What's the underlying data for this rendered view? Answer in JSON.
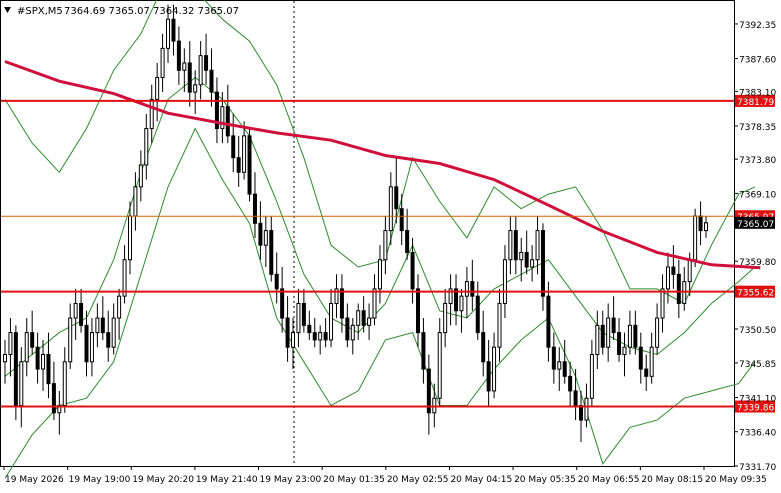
{
  "header": {
    "symbol": "#SPX,M5",
    "ohlc": "7364.69 7365.07 7364.32 7365.07"
  },
  "colors": {
    "bull_candle": "#000000",
    "bear_candle": "#000000",
    "bollinger": "#2e8b2e",
    "moving_average": "#d0103a",
    "level_line": "#e01010",
    "bid_line": "#cc6600",
    "level_tag": "#e01010",
    "price_tag": "#000000"
  },
  "chart_data": {
    "type": "candlestick",
    "ylim": [
      7331.7,
      7395.5
    ],
    "y_ticks": [
      {
        "value": 7392.35,
        "label": "7392.35"
      },
      {
        "value": 7387.6,
        "label": "7387.60"
      },
      {
        "value": 7383.1,
        "label": "7383.10"
      },
      {
        "value": 7378.35,
        "label": "7378.35"
      },
      {
        "value": 7373.8,
        "label": "7373.80"
      },
      {
        "value": 7369.1,
        "label": "7369.10"
      },
      {
        "value": 7359.8,
        "label": "7359.80"
      },
      {
        "value": 7350.5,
        "label": "7350.50"
      },
      {
        "value": 7345.85,
        "label": "7345.85"
      },
      {
        "value": 7341.1,
        "label": "7341.10"
      },
      {
        "value": 7336.4,
        "label": "7336.40"
      },
      {
        "value": 7331.7,
        "label": "7331.70"
      }
    ],
    "x_ticks": [
      "19 May 2026",
      "19 May 19:00",
      "19 May 20:20",
      "19 May 21:40",
      "19 May 23:00",
      "20 May 01:35",
      "20 May 02:55",
      "20 May 04:15",
      "20 May 05:35",
      "20 May 06:55",
      "20 May 08:15",
      "20 May 09:35"
    ],
    "horizontal_levels": [
      {
        "value": 7381.79,
        "label": "7381.79"
      },
      {
        "value": 7355.62,
        "label": "7355.62"
      },
      {
        "value": 7339.86,
        "label": "7339.86"
      }
    ],
    "bid_line": {
      "value": 7365.97,
      "label": "7365.97"
    },
    "last_price": {
      "value": 7365.07,
      "label": "7365.07"
    },
    "candles": [
      [
        7346,
        7349,
        7343,
        7347
      ],
      [
        7347,
        7352,
        7344,
        7350
      ],
      [
        7350,
        7351,
        7338,
        7340
      ],
      [
        7340,
        7348,
        7337,
        7346
      ],
      [
        7346,
        7352,
        7344,
        7350
      ],
      [
        7350,
        7353,
        7347,
        7348
      ],
      [
        7348,
        7350,
        7343,
        7345
      ],
      [
        7345,
        7349,
        7342,
        7347
      ],
      [
        7347,
        7350,
        7341,
        7343
      ],
      [
        7343,
        7346,
        7338,
        7339
      ],
      [
        7339,
        7342,
        7336,
        7340
      ],
      [
        7340,
        7348,
        7339,
        7346
      ],
      [
        7346,
        7354,
        7345,
        7352
      ],
      [
        7352,
        7356,
        7349,
        7354
      ],
      [
        7354,
        7356,
        7350,
        7351
      ],
      [
        7351,
        7353,
        7344,
        7346
      ],
      [
        7346,
        7352,
        7344,
        7350
      ],
      [
        7350,
        7354,
        7348,
        7352
      ],
      [
        7352,
        7355,
        7349,
        7350
      ],
      [
        7350,
        7353,
        7346,
        7348
      ],
      [
        7348,
        7354,
        7347,
        7352
      ],
      [
        7352,
        7356,
        7349,
        7355
      ],
      [
        7355,
        7362,
        7354,
        7360
      ],
      [
        7360,
        7368,
        7358,
        7366
      ],
      [
        7366,
        7372,
        7364,
        7370
      ],
      [
        7370,
        7375,
        7368,
        7373
      ],
      [
        7373,
        7380,
        7371,
        7378
      ],
      [
        7378,
        7384,
        7376,
        7382
      ],
      [
        7382,
        7387,
        7379,
        7385
      ],
      [
        7385,
        7391,
        7383,
        7389
      ],
      [
        7389,
        7395,
        7387,
        7393
      ],
      [
        7393,
        7395,
        7388,
        7390
      ],
      [
        7390,
        7392,
        7384,
        7386
      ],
      [
        7386,
        7389,
        7383,
        7387
      ],
      [
        7387,
        7390,
        7381,
        7383
      ],
      [
        7383,
        7386,
        7380,
        7384
      ],
      [
        7384,
        7390,
        7382,
        7388
      ],
      [
        7388,
        7391,
        7384,
        7386
      ],
      [
        7386,
        7389,
        7381,
        7383
      ],
      [
        7383,
        7385,
        7376,
        7378
      ],
      [
        7378,
        7383,
        7376,
        7381
      ],
      [
        7381,
        7384,
        7376,
        7377
      ],
      [
        7377,
        7380,
        7372,
        7374
      ],
      [
        7374,
        7377,
        7370,
        7372
      ],
      [
        7372,
        7379,
        7371,
        7377
      ],
      [
        7377,
        7378,
        7368,
        7369
      ],
      [
        7369,
        7372,
        7363,
        7365
      ],
      [
        7365,
        7368,
        7360,
        7362
      ],
      [
        7362,
        7366,
        7359,
        7364
      ],
      [
        7364,
        7366,
        7357,
        7358
      ],
      [
        7358,
        7361,
        7354,
        7356
      ],
      [
        7356,
        7359,
        7350,
        7352
      ],
      [
        7352,
        7355,
        7346,
        7348
      ],
      [
        7348,
        7352,
        7345,
        7350
      ],
      [
        7350,
        7356,
        7348,
        7354
      ],
      [
        7354,
        7356,
        7350,
        7351
      ],
      [
        7351,
        7353,
        7349,
        7350
      ],
      [
        7350,
        7352,
        7348,
        7349
      ],
      [
        7349,
        7351,
        7347,
        7350
      ],
      [
        7350,
        7352,
        7348,
        7349
      ],
      [
        7349,
        7356,
        7348,
        7354
      ],
      [
        7354,
        7358,
        7352,
        7356
      ],
      [
        7356,
        7358,
        7350,
        7352
      ],
      [
        7352,
        7354,
        7348,
        7349
      ],
      [
        7349,
        7352,
        7347,
        7351
      ],
      [
        7351,
        7354,
        7349,
        7353
      ],
      [
        7353,
        7355,
        7350,
        7351
      ],
      [
        7351,
        7354,
        7349,
        7352
      ],
      [
        7352,
        7358,
        7351,
        7356
      ],
      [
        7356,
        7362,
        7354,
        7360
      ],
      [
        7360,
        7366,
        7358,
        7364
      ],
      [
        7364,
        7372,
        7362,
        7370
      ],
      [
        7370,
        7374,
        7365,
        7367
      ],
      [
        7367,
        7369,
        7362,
        7364
      ],
      [
        7364,
        7367,
        7360,
        7361
      ],
      [
        7361,
        7363,
        7354,
        7356
      ],
      [
        7356,
        7358,
        7348,
        7350
      ],
      [
        7350,
        7352,
        7343,
        7345
      ],
      [
        7345,
        7347,
        7336,
        7339
      ],
      [
        7339,
        7343,
        7337,
        7341
      ],
      [
        7341,
        7352,
        7340,
        7350
      ],
      [
        7350,
        7356,
        7348,
        7354
      ],
      [
        7354,
        7358,
        7351,
        7356
      ],
      [
        7356,
        7358,
        7351,
        7353
      ],
      [
        7353,
        7356,
        7350,
        7355
      ],
      [
        7355,
        7359,
        7352,
        7357
      ],
      [
        7357,
        7360,
        7353,
        7355
      ],
      [
        7355,
        7357,
        7349,
        7350
      ],
      [
        7350,
        7353,
        7344,
        7346
      ],
      [
        7346,
        7349,
        7340,
        7342
      ],
      [
        7342,
        7350,
        7341,
        7348
      ],
      [
        7348,
        7356,
        7346,
        7354
      ],
      [
        7354,
        7362,
        7352,
        7360
      ],
      [
        7360,
        7366,
        7358,
        7364
      ],
      [
        7364,
        7366,
        7358,
        7360
      ],
      [
        7360,
        7363,
        7357,
        7361
      ],
      [
        7361,
        7364,
        7358,
        7359
      ],
      [
        7359,
        7362,
        7357,
        7360
      ],
      [
        7360,
        7366,
        7358,
        7364
      ],
      [
        7364,
        7365,
        7353,
        7355
      ],
      [
        7355,
        7357,
        7346,
        7348
      ],
      [
        7348,
        7350,
        7343,
        7345
      ],
      [
        7345,
        7348,
        7342,
        7346
      ],
      [
        7346,
        7349,
        7343,
        7344
      ],
      [
        7344,
        7346,
        7340,
        7342
      ],
      [
        7342,
        7345,
        7338,
        7340
      ],
      [
        7340,
        7342,
        7335,
        7338
      ],
      [
        7338,
        7343,
        7337,
        7341
      ],
      [
        7341,
        7349,
        7340,
        7347
      ],
      [
        7347,
        7353,
        7345,
        7351
      ],
      [
        7351,
        7353,
        7347,
        7348
      ],
      [
        7348,
        7354,
        7346,
        7352
      ],
      [
        7352,
        7355,
        7349,
        7350
      ],
      [
        7350,
        7352,
        7346,
        7347
      ],
      [
        7347,
        7350,
        7344,
        7348
      ],
      [
        7348,
        7353,
        7347,
        7351
      ],
      [
        7351,
        7353,
        7347,
        7348
      ],
      [
        7348,
        7350,
        7343,
        7345
      ],
      [
        7345,
        7347,
        7342,
        7344
      ],
      [
        7344,
        7350,
        7343,
        7348
      ],
      [
        7348,
        7354,
        7347,
        7352
      ],
      [
        7352,
        7358,
        7350,
        7356
      ],
      [
        7356,
        7361,
        7354,
        7359
      ],
      [
        7359,
        7362,
        7356,
        7358
      ],
      [
        7358,
        7360,
        7352,
        7354
      ],
      [
        7354,
        7359,
        7353,
        7357
      ],
      [
        7357,
        7361,
        7355,
        7360
      ],
      [
        7360,
        7367,
        7359,
        7366
      ],
      [
        7366,
        7368,
        7362,
        7364
      ],
      [
        7364,
        7366,
        7363,
        7365.07
      ]
    ],
    "moving_average": [
      [
        0,
        7387.2
      ],
      [
        10,
        7384.5
      ],
      [
        20,
        7382.8
      ],
      [
        30,
        7380.1
      ],
      [
        40,
        7378.7
      ],
      [
        50,
        7377.4
      ],
      [
        60,
        7376.4
      ],
      [
        70,
        7374.3
      ],
      [
        80,
        7373.2
      ],
      [
        90,
        7371.0
      ],
      [
        100,
        7367.5
      ],
      [
        110,
        7363.9
      ],
      [
        120,
        7361.0
      ],
      [
        130,
        7359.3
      ],
      [
        139,
        7358.9
      ]
    ],
    "bollinger_upper": [
      [
        0,
        7382
      ],
      [
        5,
        7376
      ],
      [
        10,
        7372
      ],
      [
        15,
        7378
      ],
      [
        20,
        7386
      ],
      [
        25,
        7391
      ],
      [
        30,
        7399
      ],
      [
        35,
        7397
      ],
      [
        40,
        7393
      ],
      [
        45,
        7390
      ],
      [
        50,
        7384
      ],
      [
        55,
        7374
      ],
      [
        60,
        7362
      ],
      [
        65,
        7359
      ],
      [
        70,
        7360
      ],
      [
        75,
        7374
      ],
      [
        80,
        7368
      ],
      [
        85,
        7363
      ],
      [
        90,
        7370
      ],
      [
        95,
        7367
      ],
      [
        100,
        7369
      ],
      [
        105,
        7370
      ],
      [
        110,
        7364
      ],
      [
        115,
        7356
      ],
      [
        120,
        7356
      ],
      [
        125,
        7354
      ],
      [
        130,
        7362
      ],
      [
        135,
        7369
      ],
      [
        138,
        7370
      ]
    ],
    "bollinger_middle": [
      [
        0,
        7344
      ],
      [
        5,
        7347
      ],
      [
        10,
        7350
      ],
      [
        15,
        7352
      ],
      [
        20,
        7360
      ],
      [
        25,
        7372
      ],
      [
        30,
        7382
      ],
      [
        35,
        7385
      ],
      [
        40,
        7382
      ],
      [
        45,
        7377
      ],
      [
        50,
        7368
      ],
      [
        55,
        7358
      ],
      [
        60,
        7352
      ],
      [
        65,
        7350
      ],
      [
        70,
        7354
      ],
      [
        75,
        7362
      ],
      [
        80,
        7353
      ],
      [
        85,
        7352
      ],
      [
        90,
        7356
      ],
      [
        95,
        7358
      ],
      [
        100,
        7360
      ],
      [
        105,
        7355
      ],
      [
        110,
        7350
      ],
      [
        115,
        7348
      ],
      [
        120,
        7347
      ],
      [
        125,
        7350
      ],
      [
        130,
        7354
      ],
      [
        135,
        7357
      ],
      [
        138,
        7359
      ]
    ],
    "bollinger_lower": [
      [
        0,
        7330
      ],
      [
        5,
        7336
      ],
      [
        10,
        7340
      ],
      [
        15,
        7341
      ],
      [
        20,
        7346
      ],
      [
        25,
        7358
      ],
      [
        30,
        7370
      ],
      [
        35,
        7378
      ],
      [
        40,
        7371
      ],
      [
        45,
        7365
      ],
      [
        50,
        7352
      ],
      [
        55,
        7346
      ],
      [
        60,
        7340
      ],
      [
        65,
        7342
      ],
      [
        70,
        7349
      ],
      [
        75,
        7350
      ],
      [
        80,
        7340
      ],
      [
        85,
        7340
      ],
      [
        90,
        7345
      ],
      [
        95,
        7349
      ],
      [
        100,
        7352
      ],
      [
        105,
        7344
      ],
      [
        110,
        7332
      ],
      [
        115,
        7337
      ],
      [
        120,
        7338
      ],
      [
        125,
        7341
      ],
      [
        130,
        7342
      ],
      [
        135,
        7343
      ],
      [
        138,
        7346
      ]
    ]
  }
}
